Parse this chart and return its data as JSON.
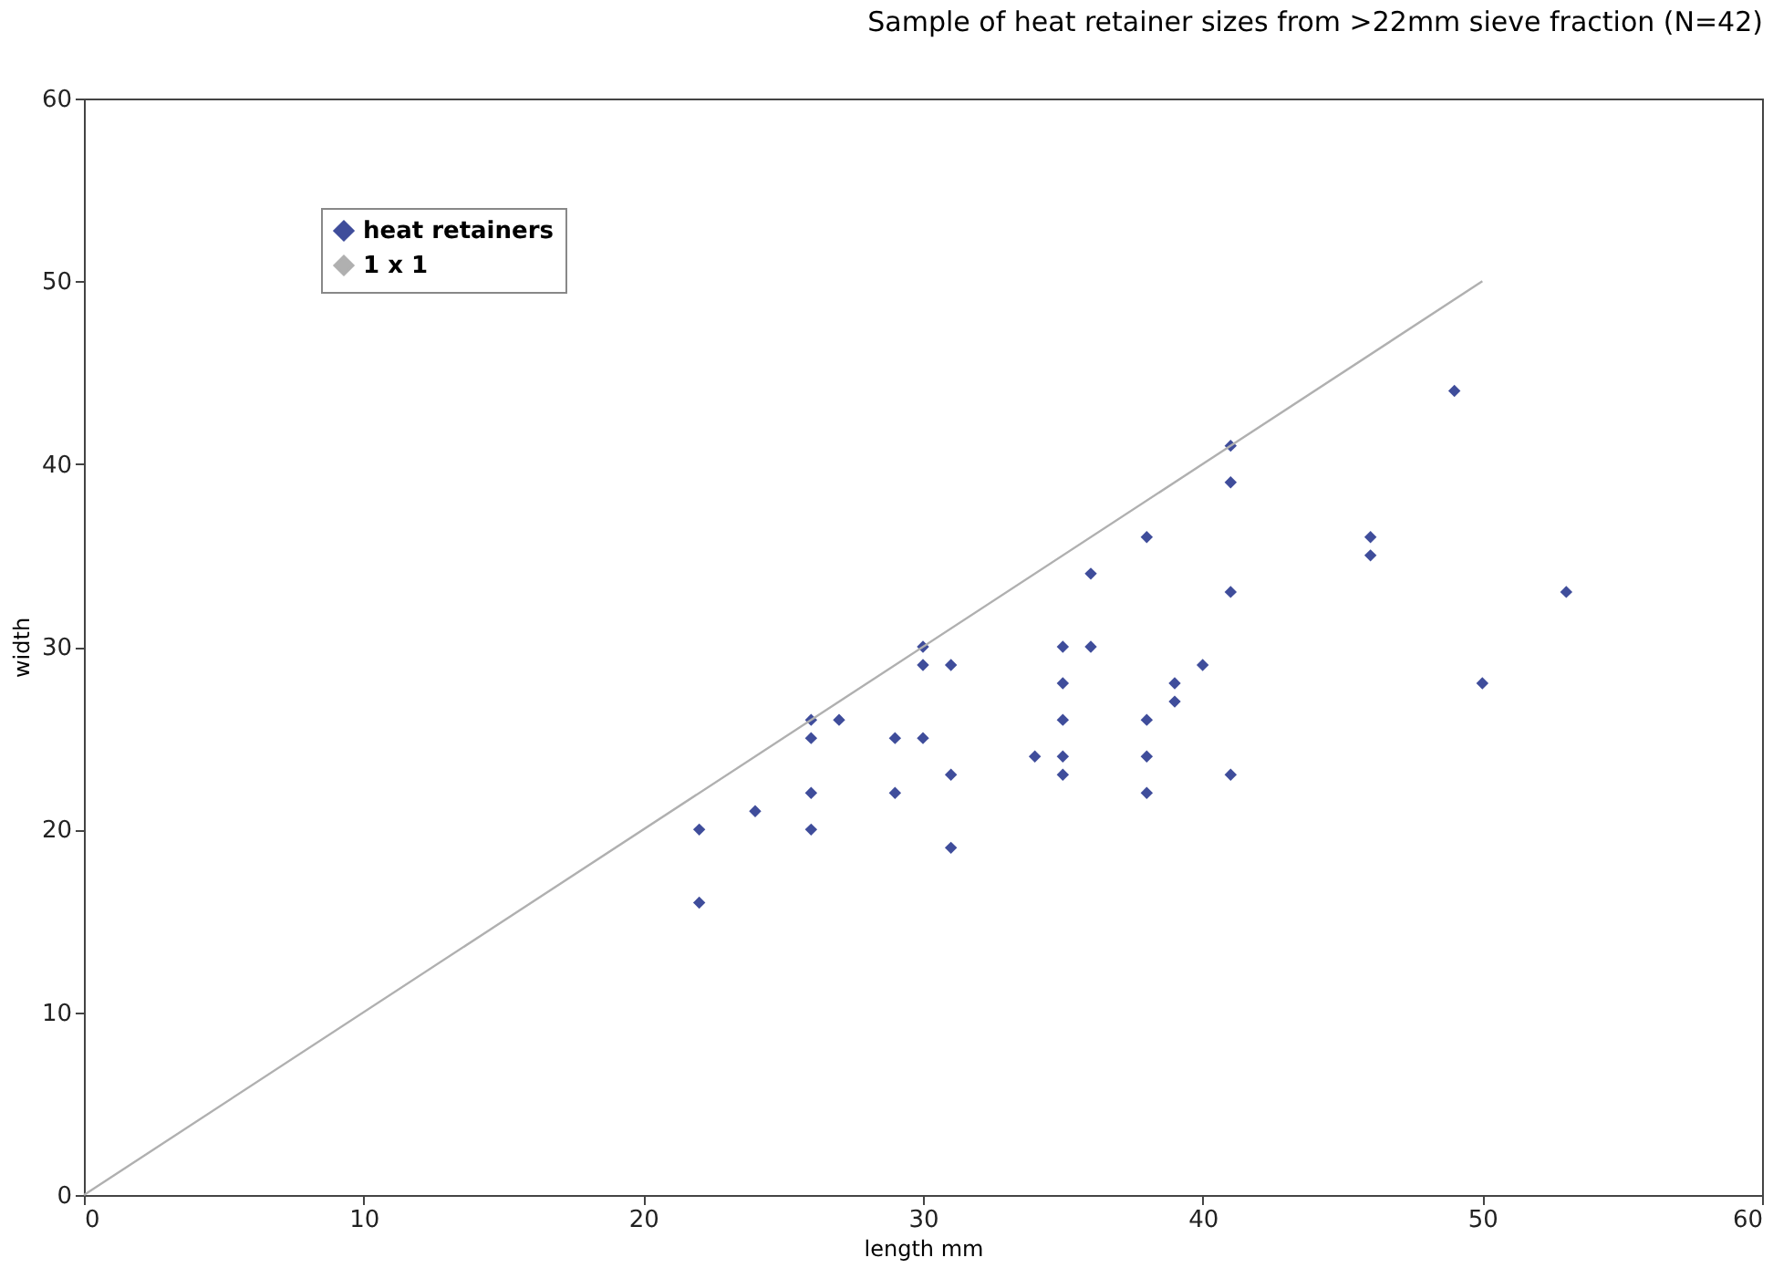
{
  "chart_data": {
    "type": "scatter",
    "title": "Sample of heat retainer sizes from >22mm sieve fraction (N=42)",
    "xlabel": "length mm",
    "ylabel": "width",
    "xlim": [
      0,
      60
    ],
    "xticks": [
      0,
      10,
      20,
      30,
      40,
      50,
      60
    ],
    "ylim": [
      0,
      60
    ],
    "yticks": [
      0,
      10,
      20,
      30,
      40,
      50,
      60
    ],
    "grid": false,
    "legend": "top left",
    "series": [
      {
        "name": "heat retainers",
        "marker": "diamond",
        "color": "#3f4d9b",
        "x": [
          22,
          22,
          24,
          26,
          26,
          26,
          26,
          27,
          29,
          29,
          30,
          30,
          30,
          31,
          31,
          31,
          34,
          35,
          35,
          35,
          35,
          35,
          36,
          36,
          38,
          38,
          38,
          38,
          39,
          39,
          40,
          41,
          41,
          41,
          41,
          46,
          46,
          49,
          50,
          53
        ],
        "values": [
          20,
          16,
          21,
          26,
          25,
          22,
          20,
          26,
          25,
          22,
          30,
          29,
          25,
          29,
          23,
          19,
          24,
          30,
          28,
          26,
          24,
          23,
          34,
          30,
          36,
          26,
          24,
          22,
          28,
          27,
          29,
          41,
          39,
          33,
          23,
          36,
          35,
          44,
          28,
          33
        ]
      },
      {
        "name": "1 x 1",
        "type": "line",
        "color": "#b0b0b0",
        "line_style": "solid",
        "x": [
          0,
          50
        ],
        "values": [
          0,
          50
        ]
      }
    ]
  }
}
